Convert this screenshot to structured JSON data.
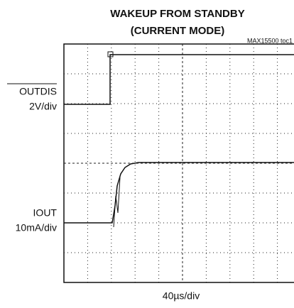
{
  "figure": {
    "title": "WAKEUP FROM STANDBY",
    "subtitle": "(CURRENT MODE)",
    "note": "MAX15500 toc1",
    "channels": [
      {
        "name": "OUTDIS",
        "scale": "2V/div"
      },
      {
        "name": "IOUT",
        "scale": "10mA/div"
      }
    ],
    "time_scale": "40µs/div"
  }
}
